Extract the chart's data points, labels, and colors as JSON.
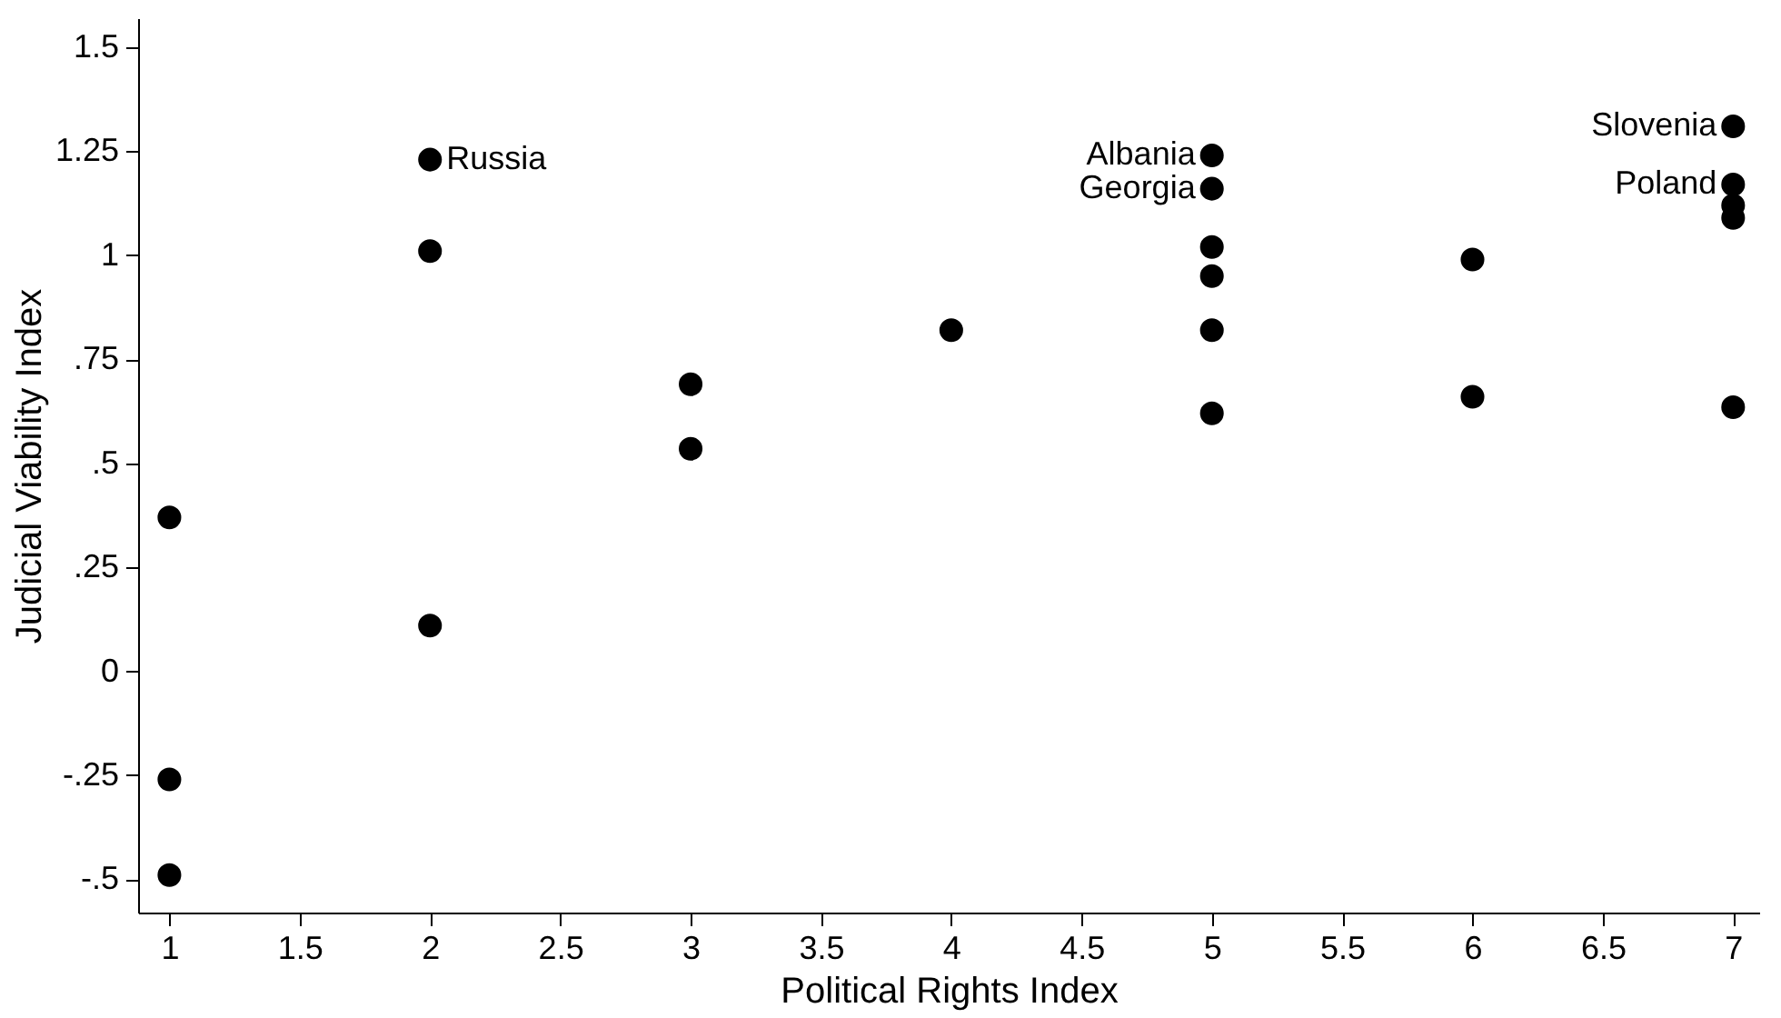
{
  "chart_data": {
    "type": "scatter",
    "xlabel": "Political Rights Index",
    "ylabel": "Judicial Viability Index",
    "x": [
      1,
      1,
      1,
      2,
      2,
      2,
      3,
      3,
      4,
      5,
      5,
      5,
      5,
      5,
      5,
      6,
      6,
      7,
      7,
      7,
      7,
      7
    ],
    "series": [
      {
        "color": "#000000",
        "values": [
          0.37,
          -0.26,
          -0.49,
          1.23,
          1.01,
          0.11,
          0.69,
          0.535,
          0.82,
          1.24,
          1.16,
          1.02,
          0.95,
          0.82,
          0.62,
          0.99,
          0.66,
          1.31,
          1.17,
          1.12,
          1.09,
          0.635
        ]
      }
    ],
    "marker": "circle",
    "xlim": [
      0.88,
      7.1
    ],
    "ylim": [
      -0.58,
      1.57
    ],
    "xticks": [
      1,
      1.5,
      2,
      2.5,
      3,
      3.5,
      4,
      4.5,
      5,
      5.5,
      6,
      6.5,
      7
    ],
    "yticks": [
      {
        "value": -0.5,
        "label": "-.5"
      },
      {
        "value": -0.25,
        "label": "-.25"
      },
      0,
      {
        "value": 0.25,
        "label": ".25"
      },
      {
        "value": 0.5,
        "label": ".5"
      },
      {
        "value": 0.75,
        "label": ".75"
      },
      1,
      1.25,
      1.5
    ],
    "annotations": [
      {
        "text": "Russia",
        "x": 2,
        "y": 1.23
      },
      {
        "text": "Albania",
        "x": 5,
        "y": 1.24
      },
      {
        "text": "Georgia",
        "x": 5,
        "y": 1.16
      },
      {
        "text": "Slovenia",
        "x": 7,
        "y": 1.31
      },
      {
        "text": "Poland",
        "x": 7,
        "y": 1.17
      }
    ]
  }
}
